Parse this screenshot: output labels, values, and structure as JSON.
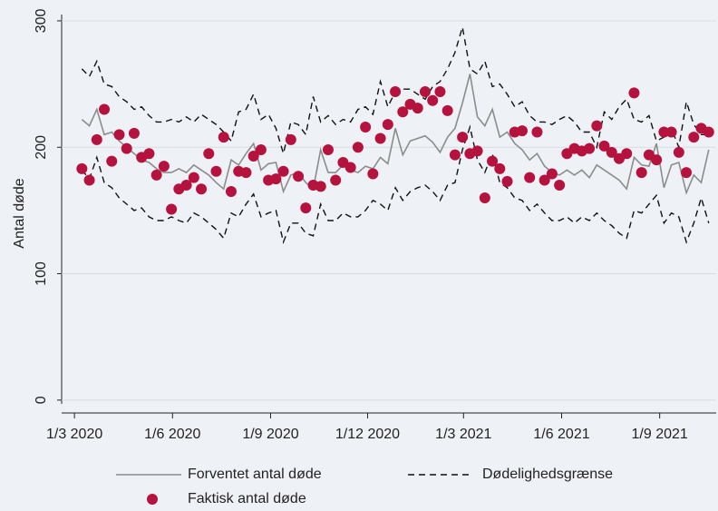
{
  "chart_data": {
    "type": "line",
    "y_label": "Antal døde",
    "x": [
      "2020-03-08",
      "2020-03-15",
      "2020-03-22",
      "2020-03-29",
      "2020-04-05",
      "2020-04-12",
      "2020-04-19",
      "2020-04-26",
      "2020-05-03",
      "2020-05-10",
      "2020-05-17",
      "2020-05-24",
      "2020-05-31",
      "2020-06-07",
      "2020-06-14",
      "2020-06-21",
      "2020-06-28",
      "2020-07-05",
      "2020-07-12",
      "2020-07-19",
      "2020-07-26",
      "2020-08-02",
      "2020-08-09",
      "2020-08-16",
      "2020-08-23",
      "2020-08-30",
      "2020-09-06",
      "2020-09-13",
      "2020-09-20",
      "2020-09-27",
      "2020-10-04",
      "2020-10-11",
      "2020-10-18",
      "2020-10-25",
      "2020-11-01",
      "2020-11-08",
      "2020-11-15",
      "2020-11-22",
      "2020-11-29",
      "2020-12-06",
      "2020-12-13",
      "2020-12-20",
      "2020-12-27",
      "2021-01-03",
      "2021-01-10",
      "2021-01-17",
      "2021-01-24",
      "2021-01-31",
      "2021-02-07",
      "2021-02-14",
      "2021-02-21",
      "2021-02-28",
      "2021-03-07",
      "2021-03-14",
      "2021-03-21",
      "2021-03-28",
      "2021-04-04",
      "2021-04-11",
      "2021-04-18",
      "2021-04-25",
      "2021-05-02",
      "2021-05-09",
      "2021-05-16",
      "2021-05-23",
      "2021-05-30",
      "2021-06-06",
      "2021-06-13",
      "2021-06-20",
      "2021-06-27",
      "2021-07-04",
      "2021-07-11",
      "2021-07-18",
      "2021-07-25",
      "2021-08-01",
      "2021-08-08",
      "2021-08-15",
      "2021-08-22",
      "2021-08-29",
      "2021-09-05",
      "2021-09-12",
      "2021-09-19",
      "2021-09-26",
      "2021-10-03",
      "2021-10-10",
      "2021-10-17"
    ],
    "series": [
      {
        "name": "Forventet antal døde",
        "color": "#8c8c8c",
        "style": "solid",
        "values": [
          222,
          217,
          230,
          210,
          212,
          205,
          200,
          195,
          190,
          188,
          183,
          180,
          180,
          183,
          180,
          186,
          182,
          178,
          172,
          167,
          190,
          186,
          195,
          203,
          182,
          187,
          188,
          165,
          178,
          180,
          172,
          167,
          198,
          180,
          180,
          186,
          182,
          180,
          185,
          183,
          192,
          187,
          215,
          194,
          205,
          207,
          209,
          204,
          196,
          208,
          215,
          235,
          258,
          224,
          217,
          230,
          208,
          212,
          203,
          198,
          190,
          195,
          185,
          180,
          178,
          182,
          178,
          182,
          176,
          186,
          182,
          178,
          174,
          167,
          192,
          186,
          185,
          203,
          168,
          186,
          188,
          164,
          178,
          172,
          198
        ]
      },
      {
        "name": "Dødelighedsgrænse",
        "color": "#111111",
        "style": "dashed",
        "upper": [
          262,
          256,
          268,
          250,
          248,
          240,
          236,
          230,
          232,
          225,
          220,
          220,
          222,
          220,
          224,
          220,
          226,
          222,
          218,
          212,
          205,
          228,
          230,
          242,
          222,
          226,
          215,
          195,
          220,
          218,
          210,
          240,
          220,
          225,
          218,
          222,
          220,
          230,
          232,
          226,
          252,
          232,
          244,
          246,
          246,
          242,
          238,
          248,
          252,
          262,
          275,
          295,
          262,
          258,
          268,
          248,
          250,
          242,
          232,
          236,
          225,
          220,
          220,
          218,
          222,
          225,
          220,
          212,
          212,
          200,
          228,
          222,
          232,
          238,
          222,
          220,
          225,
          205,
          208,
          215,
          200,
          236,
          218,
          210,
          210
        ],
        "lower": [
          182,
          175,
          192,
          172,
          168,
          160,
          155,
          150,
          152,
          145,
          142,
          142,
          145,
          142,
          140,
          148,
          145,
          140,
          135,
          128,
          148,
          145,
          155,
          163,
          145,
          148,
          150,
          125,
          140,
          140,
          132,
          130,
          155,
          142,
          142,
          148,
          145,
          145,
          150,
          158,
          155,
          150,
          168,
          158,
          165,
          168,
          170,
          165,
          158,
          170,
          172,
          198,
          216,
          190,
          180,
          195,
          172,
          168,
          160,
          158,
          150,
          155,
          148,
          142,
          142,
          145,
          140,
          145,
          142,
          148,
          142,
          138,
          132,
          128,
          150,
          148,
          155,
          162,
          140,
          148,
          145,
          125,
          140,
          160,
          140
        ]
      },
      {
        "name": "Faktisk antal døde",
        "color": "#b5123e",
        "style": "marker",
        "values": [
          183,
          174,
          206,
          230,
          189,
          210,
          199,
          211,
          192,
          195,
          178,
          185,
          151,
          167,
          170,
          176,
          167,
          195,
          181,
          208,
          165,
          181,
          180,
          193,
          198,
          174,
          175,
          181,
          206,
          177,
          152,
          170,
          169,
          198,
          174,
          188,
          184,
          200,
          216,
          179,
          207,
          218,
          244,
          228,
          234,
          231,
          244,
          237,
          244,
          229,
          194,
          208,
          195,
          197,
          160,
          189,
          183,
          173,
          212,
          213,
          176,
          212,
          174,
          179,
          170,
          195,
          199,
          197,
          199,
          217,
          201,
          196,
          191,
          195,
          243,
          180,
          194,
          190,
          212,
          212,
          196,
          180,
          208,
          215,
          212
        ]
      }
    ],
    "xlim": [
      "2020-02-18",
      "2021-10-24"
    ],
    "xticks": [
      {
        "value": "2020-03-01",
        "label": "1/3 2020"
      },
      {
        "value": "2020-06-01",
        "label": "1/6 2020"
      },
      {
        "value": "2020-09-01",
        "label": "1/9 2020"
      },
      {
        "value": "2020-12-01",
        "label": "1/12 2020"
      },
      {
        "value": "2021-03-01",
        "label": "1/3 2021"
      },
      {
        "value": "2021-06-01",
        "label": "1/6 2021"
      },
      {
        "value": "2021-09-01",
        "label": "1/9 2021"
      }
    ],
    "ylim": [
      -3,
      305
    ],
    "yticks": [
      0,
      100,
      200,
      300
    ],
    "grid": true
  }
}
